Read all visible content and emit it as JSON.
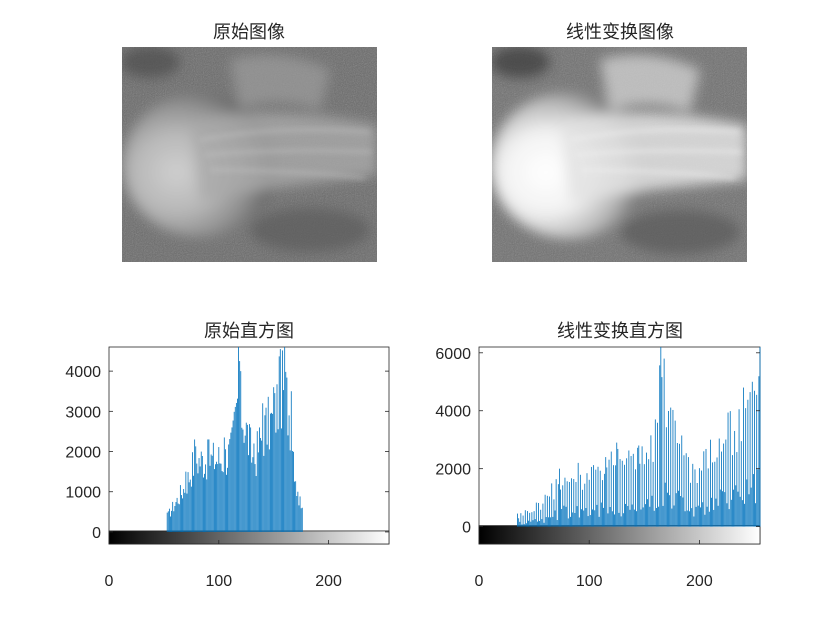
{
  "colors": {
    "bar": "#0072BD",
    "axis": "#262626",
    "background": "#ffffff"
  },
  "images": [
    {
      "title": "原始图像",
      "type": "grayscale-image",
      "contrast": "original"
    },
    {
      "title": "线性变换图像",
      "type": "grayscale-image",
      "contrast": "linear-stretched"
    }
  ],
  "chart_data": [
    {
      "type": "bar",
      "title": "原始直方图",
      "xlim": [
        0,
        255
      ],
      "ylim": [
        -300,
        4600
      ],
      "xticks": [
        0,
        100,
        200
      ],
      "yticks": [
        0,
        1000,
        2000,
        3000,
        4000
      ],
      "colorbar": "grayscale",
      "x_range": [
        53,
        176
      ],
      "spikes": [
        {
          "x": 53,
          "value": 480
        },
        {
          "x": 70,
          "value": 1500
        },
        {
          "x": 78,
          "value": 2300
        },
        {
          "x": 90,
          "value": 2300
        },
        {
          "x": 105,
          "value": 2350
        },
        {
          "x": 112,
          "value": 2600
        },
        {
          "x": 118,
          "value": 4600
        },
        {
          "x": 120,
          "value": 4000
        },
        {
          "x": 132,
          "value": 2200
        },
        {
          "x": 140,
          "value": 3200
        },
        {
          "x": 150,
          "value": 3600
        },
        {
          "x": 156,
          "value": 4550
        },
        {
          "x": 160,
          "value": 4600
        },
        {
          "x": 166,
          "value": 3500
        },
        {
          "x": 172,
          "value": 1000
        }
      ]
    },
    {
      "type": "bar",
      "title": "线性变换直方图",
      "xlim": [
        0,
        255
      ],
      "ylim": [
        -600,
        6200
      ],
      "xticks": [
        0,
        100,
        200
      ],
      "yticks": [
        0,
        2000,
        4000,
        6000
      ],
      "colorbar": "grayscale",
      "x_range": [
        35,
        255
      ],
      "spikes": [
        {
          "x": 35,
          "value": 450
        },
        {
          "x": 60,
          "value": 1100
        },
        {
          "x": 73,
          "value": 2000
        },
        {
          "x": 90,
          "value": 2200
        },
        {
          "x": 115,
          "value": 2400
        },
        {
          "x": 125,
          "value": 2900
        },
        {
          "x": 145,
          "value": 2800
        },
        {
          "x": 160,
          "value": 3700
        },
        {
          "x": 165,
          "value": 6200
        },
        {
          "x": 168,
          "value": 5800
        },
        {
          "x": 190,
          "value": 2400
        },
        {
          "x": 210,
          "value": 3000
        },
        {
          "x": 240,
          "value": 4800
        },
        {
          "x": 248,
          "value": 5000
        },
        {
          "x": 255,
          "value": 6200
        }
      ]
    }
  ]
}
